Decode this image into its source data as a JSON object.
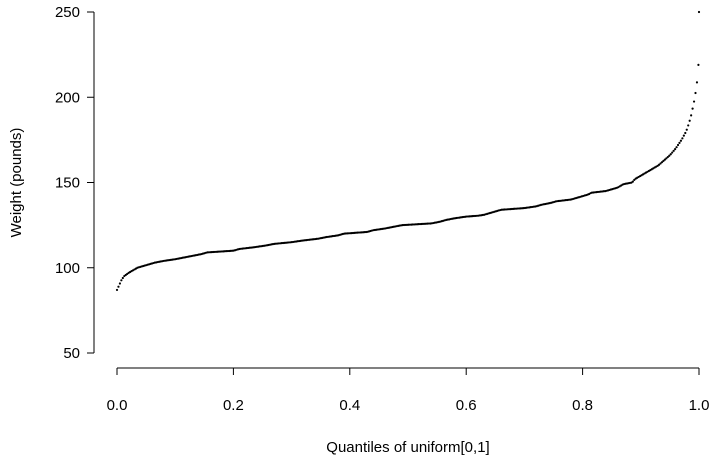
{
  "chart_data": {
    "type": "scatter",
    "title": "",
    "xlabel": "Quantiles of uniform[0,1]",
    "ylabel": "Weight  (pounds)",
    "xlim": [
      0.0,
      1.0
    ],
    "ylim": [
      50,
      250
    ],
    "x_ticks": [
      0.0,
      0.2,
      0.4,
      0.6,
      0.8,
      1.0
    ],
    "x_tick_labels": [
      "0.0",
      "0.2",
      "0.4",
      "0.6",
      "0.8",
      "1.0"
    ],
    "y_ticks": [
      50,
      100,
      150,
      200,
      250
    ],
    "y_tick_labels": [
      "50",
      "100",
      "150",
      "200",
      "250"
    ],
    "grid": false,
    "legend": "none",
    "point_color": "#000000",
    "curve": [
      [
        0.0,
        87
      ],
      [
        0.004,
        90
      ],
      [
        0.008,
        93
      ],
      [
        0.012,
        95
      ],
      [
        0.016,
        96
      ],
      [
        0.02,
        97
      ],
      [
        0.025,
        98
      ],
      [
        0.03,
        99
      ],
      [
        0.035,
        100
      ],
      [
        0.045,
        101
      ],
      [
        0.055,
        102
      ],
      [
        0.065,
        103
      ],
      [
        0.08,
        104
      ],
      [
        0.1,
        105
      ],
      [
        0.115,
        106
      ],
      [
        0.13,
        107
      ],
      [
        0.145,
        108
      ],
      [
        0.155,
        109
      ],
      [
        0.2,
        110
      ],
      [
        0.21,
        111
      ],
      [
        0.235,
        112
      ],
      [
        0.255,
        113
      ],
      [
        0.27,
        114
      ],
      [
        0.3,
        115
      ],
      [
        0.32,
        116
      ],
      [
        0.345,
        117
      ],
      [
        0.36,
        118
      ],
      [
        0.38,
        119
      ],
      [
        0.39,
        120
      ],
      [
        0.41,
        120.5
      ],
      [
        0.43,
        121
      ],
      [
        0.44,
        122
      ],
      [
        0.46,
        123
      ],
      [
        0.475,
        124
      ],
      [
        0.49,
        125
      ],
      [
        0.54,
        126
      ],
      [
        0.555,
        127
      ],
      [
        0.565,
        128
      ],
      [
        0.58,
        129
      ],
      [
        0.6,
        130
      ],
      [
        0.62,
        130.5
      ],
      [
        0.63,
        131
      ],
      [
        0.64,
        132
      ],
      [
        0.65,
        133
      ],
      [
        0.66,
        134
      ],
      [
        0.7,
        135
      ],
      [
        0.72,
        136
      ],
      [
        0.73,
        137
      ],
      [
        0.745,
        138
      ],
      [
        0.755,
        139
      ],
      [
        0.78,
        140
      ],
      [
        0.79,
        141
      ],
      [
        0.8,
        142
      ],
      [
        0.81,
        143
      ],
      [
        0.815,
        144
      ],
      [
        0.84,
        145
      ],
      [
        0.85,
        146
      ],
      [
        0.86,
        147
      ],
      [
        0.87,
        149
      ],
      [
        0.885,
        150
      ],
      [
        0.89,
        152
      ],
      [
        0.895,
        153
      ],
      [
        0.9,
        154
      ],
      [
        0.91,
        156
      ],
      [
        0.92,
        158
      ],
      [
        0.93,
        160
      ],
      [
        0.94,
        163
      ],
      [
        0.95,
        166
      ],
      [
        0.96,
        170
      ],
      [
        0.97,
        175
      ],
      [
        0.978,
        180
      ],
      [
        0.983,
        185
      ],
      [
        0.987,
        190
      ],
      [
        0.99,
        195
      ],
      [
        0.993,
        200
      ],
      [
        0.995,
        205
      ],
      [
        0.997,
        210
      ],
      [
        0.998,
        215
      ],
      [
        0.999,
        219
      ]
    ],
    "outliers": [
      {
        "x": 1.0,
        "y": 250
      }
    ],
    "n_points": 400
  }
}
